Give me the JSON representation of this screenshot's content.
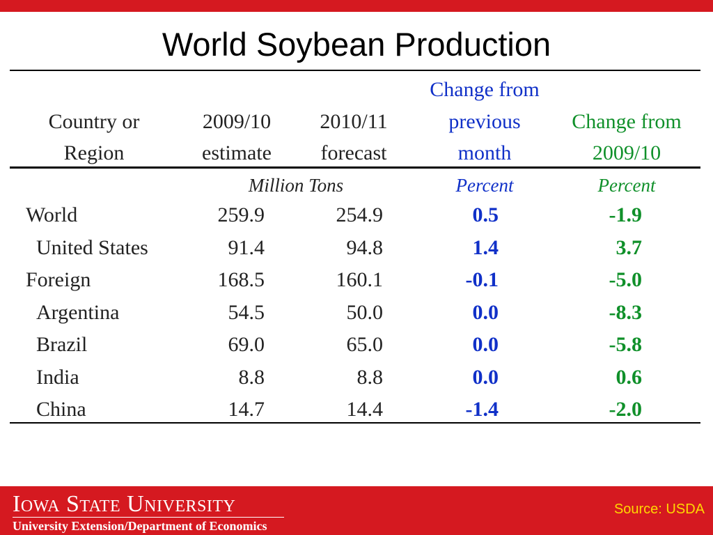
{
  "slide": {
    "title": "World Soybean Production"
  },
  "table": {
    "headers": {
      "country": [
        "Country or",
        "Region"
      ],
      "y2009": [
        "2009/10",
        "estimate"
      ],
      "y2010": [
        "2010/11",
        "forecast"
      ],
      "chg_month": [
        "Change from",
        "previous",
        "month"
      ],
      "chg_year": [
        "Change from",
        "2009/10"
      ]
    },
    "units": {
      "tons": "Million Tons",
      "pct_month": "Percent",
      "pct_year": "Percent"
    },
    "rows": [
      {
        "name": "World",
        "indent": false,
        "y2009": "259.9",
        "y2010": "254.9",
        "chg_month": "0.5",
        "chg_year": "-1.9"
      },
      {
        "name": "United States",
        "indent": true,
        "y2009": "91.4",
        "y2010": "94.8",
        "chg_month": "1.4",
        "chg_year": "3.7"
      },
      {
        "name": "Foreign",
        "indent": false,
        "y2009": "168.5",
        "y2010": "160.1",
        "chg_month": "-0.1",
        "chg_year": "-5.0"
      },
      {
        "name": "Argentina",
        "indent": true,
        "y2009": "54.5",
        "y2010": "50.0",
        "chg_month": "0.0",
        "chg_year": "-8.3"
      },
      {
        "name": "Brazil",
        "indent": true,
        "y2009": "69.0",
        "y2010": "65.0",
        "chg_month": "0.0",
        "chg_year": "-5.8"
      },
      {
        "name": "India",
        "indent": true,
        "y2009": "8.8",
        "y2010": "8.8",
        "chg_month": "0.0",
        "chg_year": "0.6"
      },
      {
        "name": "China",
        "indent": true,
        "y2009": "14.7",
        "y2010": "14.4",
        "chg_month": "-1.4",
        "chg_year": "-2.0"
      }
    ]
  },
  "footer": {
    "university": "Iowa State University",
    "department": "University Extension/Department of Economics",
    "source": "Source: USDA"
  },
  "colors": {
    "brand_red": "#d51920",
    "month_change_blue": "#1030c8",
    "year_change_green": "#10902a",
    "source_yellow": "#ffd800"
  }
}
